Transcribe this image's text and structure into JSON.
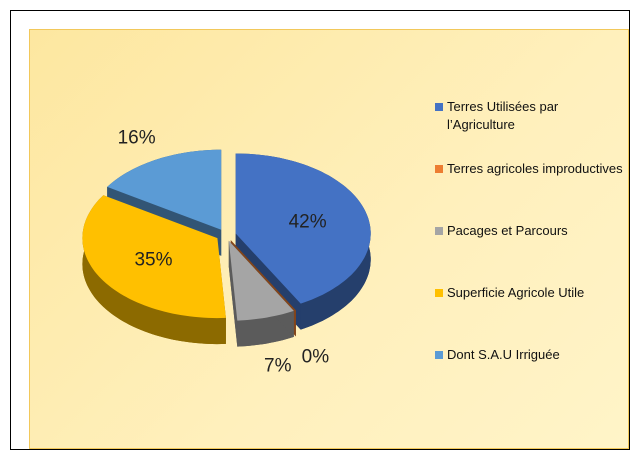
{
  "chart_data": {
    "type": "pie",
    "series": [
      {
        "name": "Terres Utilisées par l’Agriculture",
        "color": "#4472c4"
      },
      {
        "name": "Terres agricoles improductives",
        "color": "#ed7d31"
      },
      {
        "name": "Pacages et Parcours",
        "color": "#a5a5a5"
      },
      {
        "name": "Superficie Agricole Utile",
        "color": "#ffc000"
      },
      {
        "name": "Dont S.A.U Irriguée",
        "color": "#5b9bd5"
      }
    ],
    "values": [
      42,
      0,
      7,
      35,
      16
    ],
    "value_labels": [
      "42%",
      "0%",
      "7%",
      "35%",
      "16%"
    ],
    "legend": "right"
  }
}
